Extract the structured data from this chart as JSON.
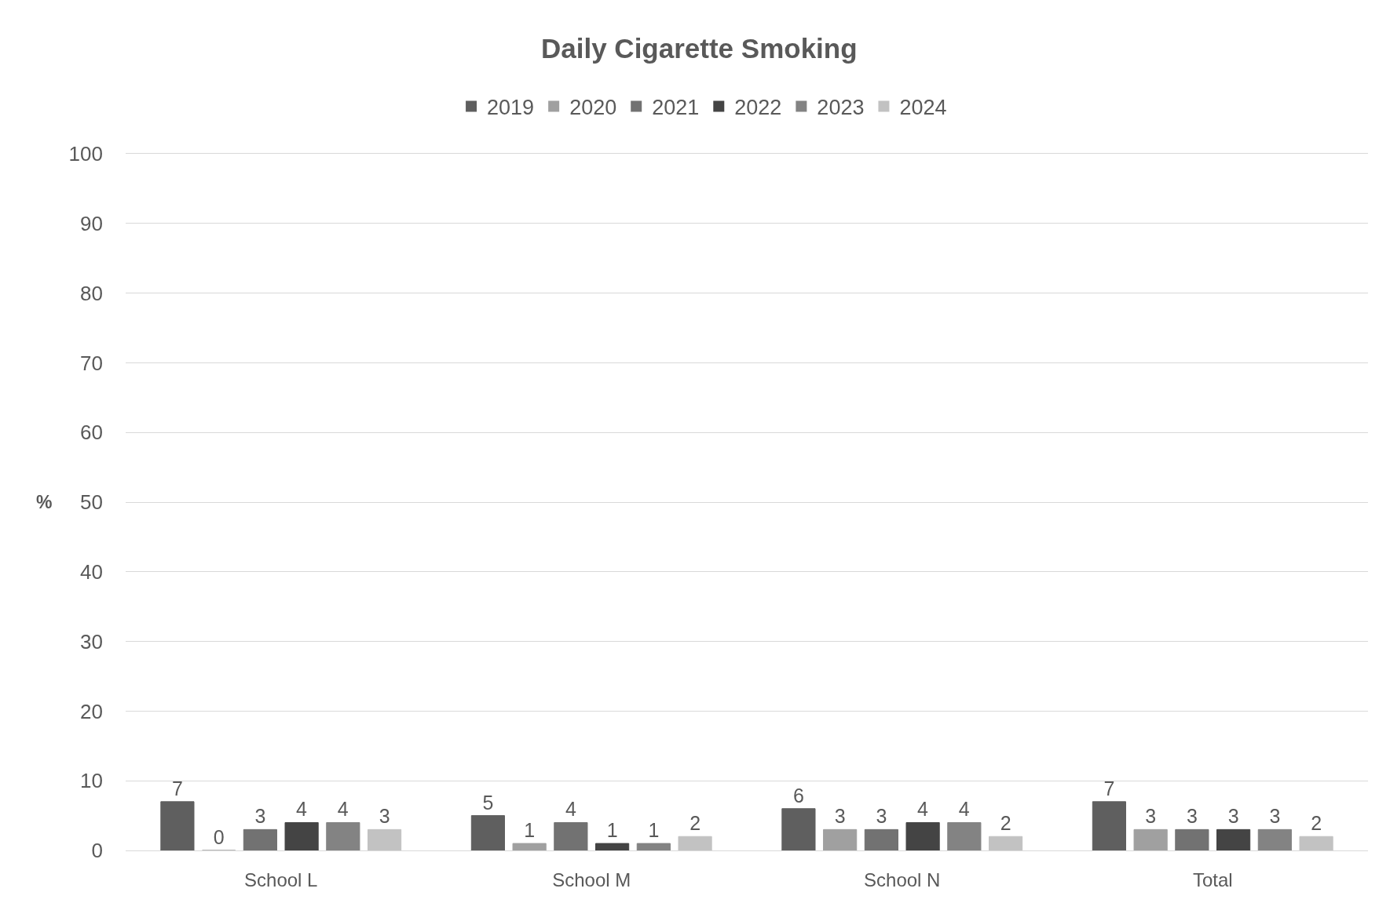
{
  "chart_data": {
    "type": "bar",
    "title": "Daily Cigarette Smoking",
    "ylabel": "%",
    "categories": [
      "School L",
      "School M",
      "School N",
      "Total"
    ],
    "series": [
      {
        "name": "2019",
        "color": "#5f5f5f",
        "values": [
          7,
          5,
          6,
          7
        ]
      },
      {
        "name": "2020",
        "color": "#a0a0a0",
        "values": [
          0,
          1,
          3,
          3
        ]
      },
      {
        "name": "2021",
        "color": "#727272",
        "values": [
          3,
          4,
          3,
          3
        ]
      },
      {
        "name": "2022",
        "color": "#444444",
        "values": [
          4,
          1,
          4,
          3
        ]
      },
      {
        "name": "2023",
        "color": "#838383",
        "values": [
          4,
          1,
          4,
          3
        ]
      },
      {
        "name": "2024",
        "color": "#c2c2c2",
        "values": [
          3,
          2,
          2,
          2
        ]
      }
    ],
    "ylim": [
      0,
      100
    ],
    "yticks": [
      0,
      10,
      20,
      30,
      40,
      50,
      60,
      70,
      80,
      90,
      100
    ],
    "grid": "y",
    "legend": "top",
    "data_labels": true
  }
}
